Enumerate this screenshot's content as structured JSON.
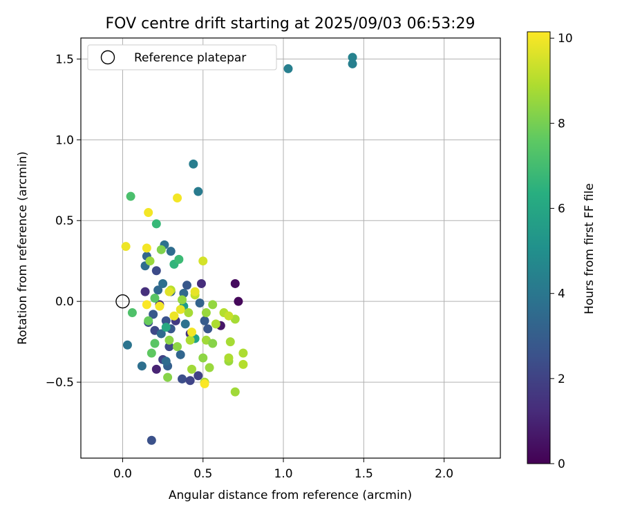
{
  "chart_data": {
    "type": "scatter",
    "title": "FOV centre drift starting at 2025/09/03 06:53:29",
    "xlabel": "Angular distance from reference (arcmin)",
    "ylabel": "Rotation from reference (arcmin)",
    "xlim": [
      -0.26,
      2.35
    ],
    "ylim": [
      -0.97,
      1.63
    ],
    "xticks": [
      0.0,
      0.5,
      1.0,
      1.5,
      2.0
    ],
    "xtick_labels": [
      "0.0",
      "0.5",
      "1.0",
      "1.5",
      "2.0"
    ],
    "yticks": [
      -0.5,
      0.0,
      0.5,
      1.0,
      1.5
    ],
    "ytick_labels": [
      "−0.5",
      "0.0",
      "0.5",
      "1.0",
      "1.5"
    ],
    "grid": true,
    "legend": {
      "position": "top-left",
      "entries": [
        "Reference platepar"
      ]
    },
    "reference_point": {
      "x": 0.0,
      "y": 0.0
    },
    "colorbar": {
      "label": "Hours from first FF file",
      "colormap": "viridis",
      "range": [
        0,
        10.15
      ],
      "ticks": [
        0,
        2,
        4,
        6,
        8,
        10
      ],
      "tick_labels": [
        "0",
        "2",
        "4",
        "6",
        "8",
        "10"
      ]
    },
    "points": [
      {
        "x": 0.7,
        "y": 0.11,
        "h": 0.3
      },
      {
        "x": 0.72,
        "y": 0.0,
        "h": 0.2
      },
      {
        "x": 0.61,
        "y": -0.15,
        "h": 0.6
      },
      {
        "x": 0.21,
        "y": -0.42,
        "h": 1.0
      },
      {
        "x": 0.14,
        "y": 0.06,
        "h": 1.4
      },
      {
        "x": 0.49,
        "y": 0.11,
        "h": 1.3
      },
      {
        "x": 0.23,
        "y": -0.02,
        "h": 1.3
      },
      {
        "x": 0.18,
        "y": -0.86,
        "h": 2.5
      },
      {
        "x": 0.21,
        "y": 0.19,
        "h": 2.3
      },
      {
        "x": 0.16,
        "y": -0.13,
        "h": 2.4
      },
      {
        "x": 0.2,
        "y": -0.18,
        "h": 2.2
      },
      {
        "x": 0.27,
        "y": -0.12,
        "h": 2.6
      },
      {
        "x": 0.3,
        "y": -0.17,
        "h": 2.8
      },
      {
        "x": 0.33,
        "y": -0.12,
        "h": 1.7
      },
      {
        "x": 0.37,
        "y": -0.48,
        "h": 2.4
      },
      {
        "x": 0.42,
        "y": -0.49,
        "h": 2.1
      },
      {
        "x": 0.47,
        "y": -0.46,
        "h": 2.0
      },
      {
        "x": 0.42,
        "y": -0.2,
        "h": 1.5
      },
      {
        "x": 0.25,
        "y": -0.36,
        "h": 2.0
      },
      {
        "x": 0.29,
        "y": -0.28,
        "h": 2.2
      },
      {
        "x": 0.53,
        "y": -0.17,
        "h": 2.7
      },
      {
        "x": 0.51,
        "y": -0.12,
        "h": 2.9
      },
      {
        "x": 0.48,
        "y": -0.01,
        "h": 3.2
      },
      {
        "x": 0.4,
        "y": 0.1,
        "h": 2.8
      },
      {
        "x": 0.3,
        "y": 0.06,
        "h": 3.1
      },
      {
        "x": 0.19,
        "y": -0.08,
        "h": 2.8
      },
      {
        "x": 0.15,
        "y": 0.28,
        "h": 3.3
      },
      {
        "x": 0.14,
        "y": 0.22,
        "h": 3.6
      },
      {
        "x": 0.26,
        "y": 0.35,
        "h": 3.8
      },
      {
        "x": 0.3,
        "y": 0.31,
        "h": 3.6
      },
      {
        "x": 0.25,
        "y": 0.11,
        "h": 3.7
      },
      {
        "x": 0.22,
        "y": 0.07,
        "h": 3.4
      },
      {
        "x": 0.36,
        "y": -0.33,
        "h": 3.3
      },
      {
        "x": 0.28,
        "y": -0.4,
        "h": 3.1
      },
      {
        "x": 0.27,
        "y": -0.37,
        "h": 3.5
      },
      {
        "x": 0.12,
        "y": -0.4,
        "h": 3.7
      },
      {
        "x": 0.03,
        "y": -0.27,
        "h": 3.9
      },
      {
        "x": 0.24,
        "y": -0.2,
        "h": 3.5
      },
      {
        "x": 0.38,
        "y": 0.05,
        "h": 3.4
      },
      {
        "x": 0.39,
        "y": -0.14,
        "h": 3.8
      },
      {
        "x": 0.44,
        "y": 0.85,
        "h": 4.3
      },
      {
        "x": 0.47,
        "y": 0.68,
        "h": 4.2
      },
      {
        "x": 1.03,
        "y": 1.44,
        "h": 4.4
      },
      {
        "x": 1.43,
        "y": 1.51,
        "h": 4.5
      },
      {
        "x": 1.43,
        "y": 1.47,
        "h": 4.4
      },
      {
        "x": 0.45,
        "y": -0.23,
        "h": 5.8
      },
      {
        "x": 0.38,
        "y": -0.03,
        "h": 5.6
      },
      {
        "x": 0.27,
        "y": -0.16,
        "h": 6.1
      },
      {
        "x": 0.21,
        "y": 0.48,
        "h": 6.8
      },
      {
        "x": 0.32,
        "y": 0.23,
        "h": 6.6
      },
      {
        "x": 0.35,
        "y": 0.26,
        "h": 6.9
      },
      {
        "x": 0.05,
        "y": 0.65,
        "h": 7.2
      },
      {
        "x": 0.06,
        "y": -0.07,
        "h": 7.3
      },
      {
        "x": 0.2,
        "y": 0.02,
        "h": 7.5
      },
      {
        "x": 0.18,
        "y": -0.32,
        "h": 7.6
      },
      {
        "x": 0.2,
        "y": -0.26,
        "h": 7.5
      },
      {
        "x": 0.16,
        "y": -0.12,
        "h": 7.8
      },
      {
        "x": 0.24,
        "y": 0.32,
        "h": 8.2
      },
      {
        "x": 0.17,
        "y": 0.25,
        "h": 8.6
      },
      {
        "x": 0.29,
        "y": -0.24,
        "h": 8.4
      },
      {
        "x": 0.28,
        "y": -0.47,
        "h": 8.3
      },
      {
        "x": 0.43,
        "y": -0.42,
        "h": 8.7
      },
      {
        "x": 0.51,
        "y": -0.5,
        "h": 8.8
      },
      {
        "x": 0.54,
        "y": -0.41,
        "h": 8.6
      },
      {
        "x": 0.5,
        "y": -0.35,
        "h": 8.4
      },
      {
        "x": 0.52,
        "y": -0.24,
        "h": 8.7
      },
      {
        "x": 0.56,
        "y": -0.26,
        "h": 8.3
      },
      {
        "x": 0.56,
        "y": -0.02,
        "h": 8.5
      },
      {
        "x": 0.52,
        "y": -0.07,
        "h": 8.6
      },
      {
        "x": 0.58,
        "y": -0.14,
        "h": 8.9
      },
      {
        "x": 0.63,
        "y": -0.07,
        "h": 9.0
      },
      {
        "x": 0.67,
        "y": -0.25,
        "h": 8.8
      },
      {
        "x": 0.66,
        "y": -0.37,
        "h": 8.6
      },
      {
        "x": 0.66,
        "y": -0.35,
        "h": 8.9
      },
      {
        "x": 0.7,
        "y": -0.56,
        "h": 8.7
      },
      {
        "x": 0.7,
        "y": -0.11,
        "h": 8.8
      },
      {
        "x": 0.75,
        "y": -0.32,
        "h": 8.9
      },
      {
        "x": 0.75,
        "y": -0.39,
        "h": 9.0
      },
      {
        "x": 0.37,
        "y": 0.01,
        "h": 8.5
      },
      {
        "x": 0.41,
        "y": -0.07,
        "h": 8.8
      },
      {
        "x": 0.42,
        "y": -0.24,
        "h": 8.9
      },
      {
        "x": 0.34,
        "y": -0.28,
        "h": 8.4
      },
      {
        "x": 0.3,
        "y": 0.07,
        "h": 9.1
      },
      {
        "x": 0.45,
        "y": 0.04,
        "h": 9.2
      },
      {
        "x": 0.5,
        "y": 0.25,
        "h": 9.5
      },
      {
        "x": 0.66,
        "y": -0.09,
        "h": 9.3
      },
      {
        "x": 0.29,
        "y": 0.06,
        "h": 9.7
      },
      {
        "x": 0.02,
        "y": 0.34,
        "h": 9.9
      },
      {
        "x": 0.15,
        "y": 0.33,
        "h": 10.0
      },
      {
        "x": 0.16,
        "y": 0.55,
        "h": 10.0
      },
      {
        "x": 0.34,
        "y": 0.64,
        "h": 10.0
      },
      {
        "x": 0.15,
        "y": -0.02,
        "h": 10.1
      },
      {
        "x": 0.23,
        "y": -0.03,
        "h": 10.0
      },
      {
        "x": 0.32,
        "y": -0.09,
        "h": 9.9
      },
      {
        "x": 0.36,
        "y": -0.05,
        "h": 9.8
      },
      {
        "x": 0.43,
        "y": -0.19,
        "h": 10.0
      },
      {
        "x": 0.45,
        "y": 0.06,
        "h": 9.8
      },
      {
        "x": 0.51,
        "y": -0.51,
        "h": 10.1
      }
    ]
  }
}
